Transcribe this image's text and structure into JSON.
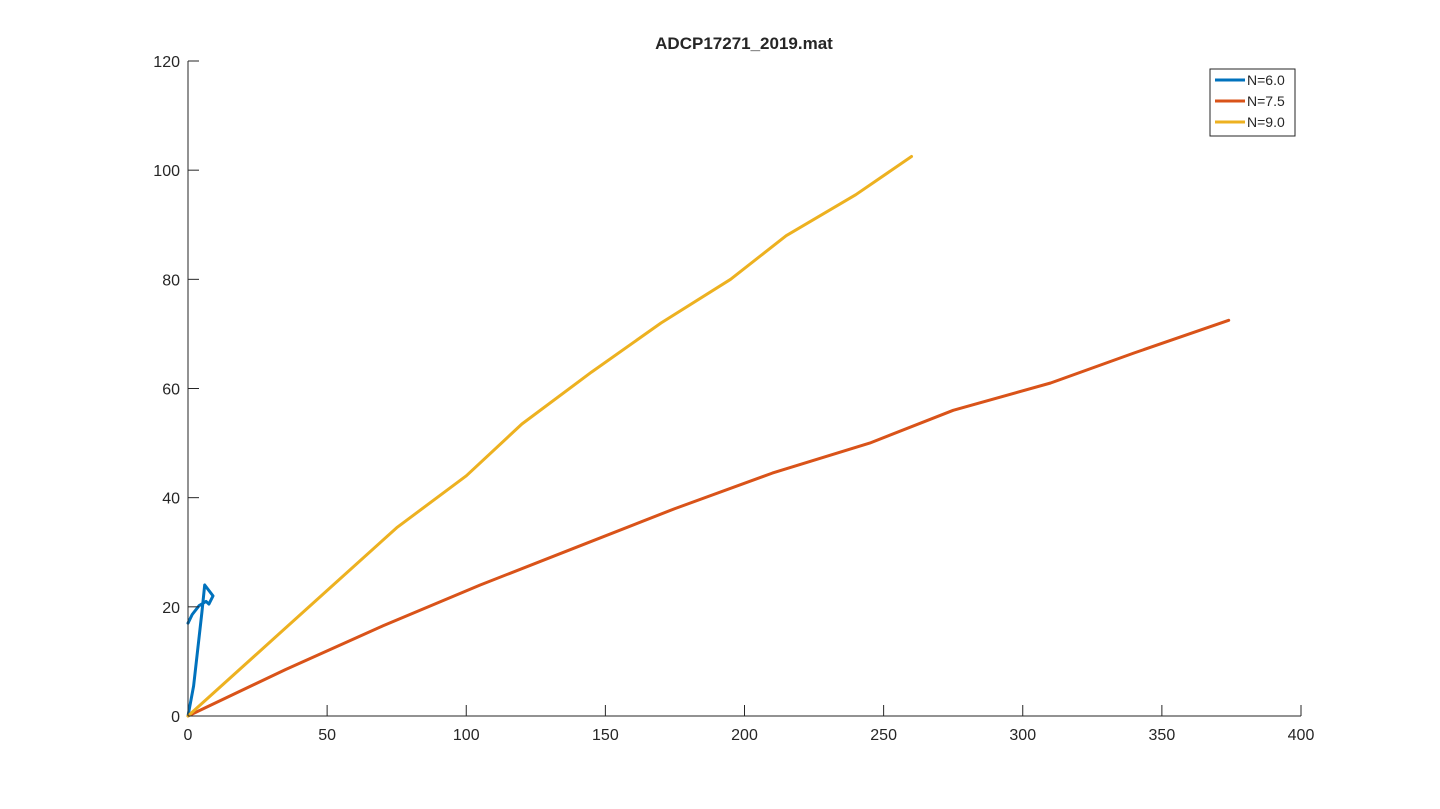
{
  "chart_data": {
    "type": "line",
    "title": "ADCP17271_2019.mat",
    "xlabel": "",
    "ylabel": "",
    "xlim": [
      0,
      400
    ],
    "ylim": [
      0,
      120
    ],
    "x_ticks": [
      "0",
      "50",
      "100",
      "150",
      "200",
      "250",
      "300",
      "350",
      "400"
    ],
    "y_ticks": [
      "0",
      "20",
      "40",
      "60",
      "80",
      "100",
      "120"
    ],
    "grid": false,
    "legend_position": "top-right",
    "series": [
      {
        "name": "N=6.0",
        "color": "#0072BD",
        "points": [
          [
            0,
            17
          ],
          [
            1.5,
            18.6
          ],
          [
            4,
            20.2
          ],
          [
            6.5,
            21
          ],
          [
            7.5,
            20.5
          ],
          [
            9,
            22
          ],
          [
            6,
            24
          ],
          [
            5,
            19
          ],
          [
            2,
            5.5
          ],
          [
            0,
            0
          ]
        ]
      },
      {
        "name": "N=7.5",
        "color": "#D95319",
        "points": [
          [
            0,
            0
          ],
          [
            35,
            8.5
          ],
          [
            70,
            16.5
          ],
          [
            105,
            24
          ],
          [
            140,
            31
          ],
          [
            175,
            38
          ],
          [
            210,
            44.5
          ],
          [
            245,
            50
          ],
          [
            275,
            56
          ],
          [
            310,
            61
          ],
          [
            340,
            66.5
          ],
          [
            374,
            72.5
          ]
        ]
      },
      {
        "name": "N=9.0",
        "color": "#EDB120",
        "points": [
          [
            0,
            0
          ],
          [
            25,
            11.5
          ],
          [
            50,
            23
          ],
          [
            75,
            34.5
          ],
          [
            100,
            44
          ],
          [
            120,
            53.5
          ],
          [
            145,
            63
          ],
          [
            170,
            72
          ],
          [
            195,
            80
          ],
          [
            215,
            88
          ],
          [
            240,
            95.5
          ],
          [
            260,
            102.5
          ]
        ]
      }
    ]
  }
}
